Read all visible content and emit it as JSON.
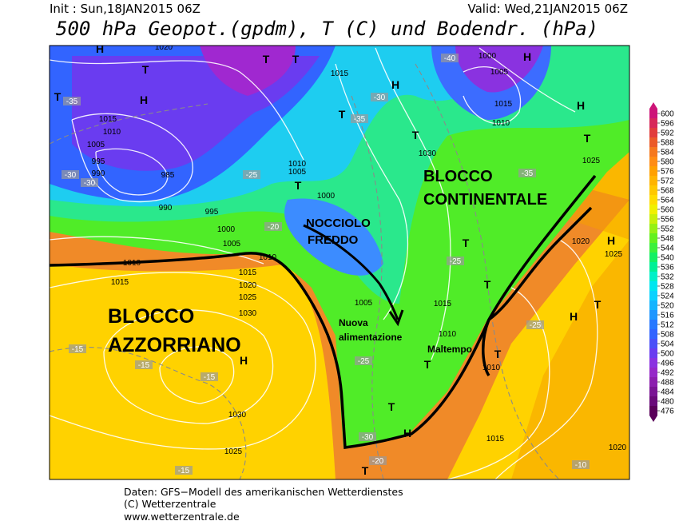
{
  "header": {
    "init": "Init : Sun,18JAN2015 06Z",
    "valid": "Valid: Wed,21JAN2015 06Z",
    "title": "500 hPa Geopot.(gpdm), T (C) und Bodendr. (hPa)"
  },
  "annotations": {
    "azores": [
      "BLOCCO",
      "AZZORRIANO"
    ],
    "continental": [
      "BLOCCO",
      "CONTINENTALE"
    ],
    "cold_core": [
      "NOCCIOLO",
      "FREDDO"
    ],
    "feed": [
      "Nuova",
      "alimentazione"
    ],
    "bad_weather": "Maltempo"
  },
  "map_labels": {
    "pressure": [
      "1020",
      "1015",
      "1010",
      "1005",
      "995",
      "990",
      "985",
      "990",
      "995",
      "1000",
      "1005",
      "1010",
      "1015",
      "1020",
      "1025",
      "1030",
      "1030",
      "1025",
      "1015",
      "1010",
      "1005",
      "1000",
      "1005",
      "1010",
      "1015",
      "1020",
      "1025",
      "1030",
      "1025",
      "1000",
      "1005",
      "1015",
      "1010",
      "1015",
      "1010",
      "1015",
      "1020",
      "1010"
    ],
    "temperature": [
      "-30",
      "-35",
      "-30",
      "-25",
      "-20",
      "-35",
      "-30",
      "-25",
      "-25",
      "-30",
      "-20",
      "-15",
      "-15",
      "-15",
      "-15",
      "-10",
      "-25",
      "-35",
      "-40"
    ],
    "centers": [
      "H",
      "T",
      "H",
      "T",
      "T",
      "T",
      "H",
      "T",
      "H",
      "T",
      "H",
      "H",
      "T",
      "T",
      "T",
      "T",
      "T",
      "H",
      "T",
      "H",
      "T",
      "T",
      "H",
      "T"
    ]
  },
  "colorbar": {
    "lim": [
      476,
      600
    ],
    "ticks": [
      600,
      596,
      592,
      588,
      584,
      580,
      576,
      572,
      568,
      564,
      560,
      556,
      552,
      548,
      544,
      540,
      536,
      532,
      528,
      524,
      520,
      516,
      512,
      508,
      504,
      500,
      496,
      492,
      488,
      484,
      480,
      476
    ],
    "colors": [
      "#cd1478",
      "#d7285a",
      "#e13c3c",
      "#eb5a28",
      "#f5781e",
      "#ff8c14",
      "#ffa000",
      "#ffb400",
      "#ffc800",
      "#ffdc00",
      "#f0f000",
      "#c8f00a",
      "#96f014",
      "#64f01e",
      "#3cf03c",
      "#14f064",
      "#00f096",
      "#00f0c8",
      "#00e6f0",
      "#0ad2ff",
      "#14b4ff",
      "#1e96ff",
      "#2878ff",
      "#3264ff",
      "#4a50f8",
      "#6a3cf0",
      "#8a32e0",
      "#9628c8",
      "#8c1eae",
      "#7a1494",
      "#6a0a7a",
      "#5a005a"
    ]
  },
  "footer": [
    "Daten: GFS−Modell des amerikanischen Wetterdienstes",
    "(C) Wetterzentrale",
    "www.wetterzentrale.de"
  ]
}
